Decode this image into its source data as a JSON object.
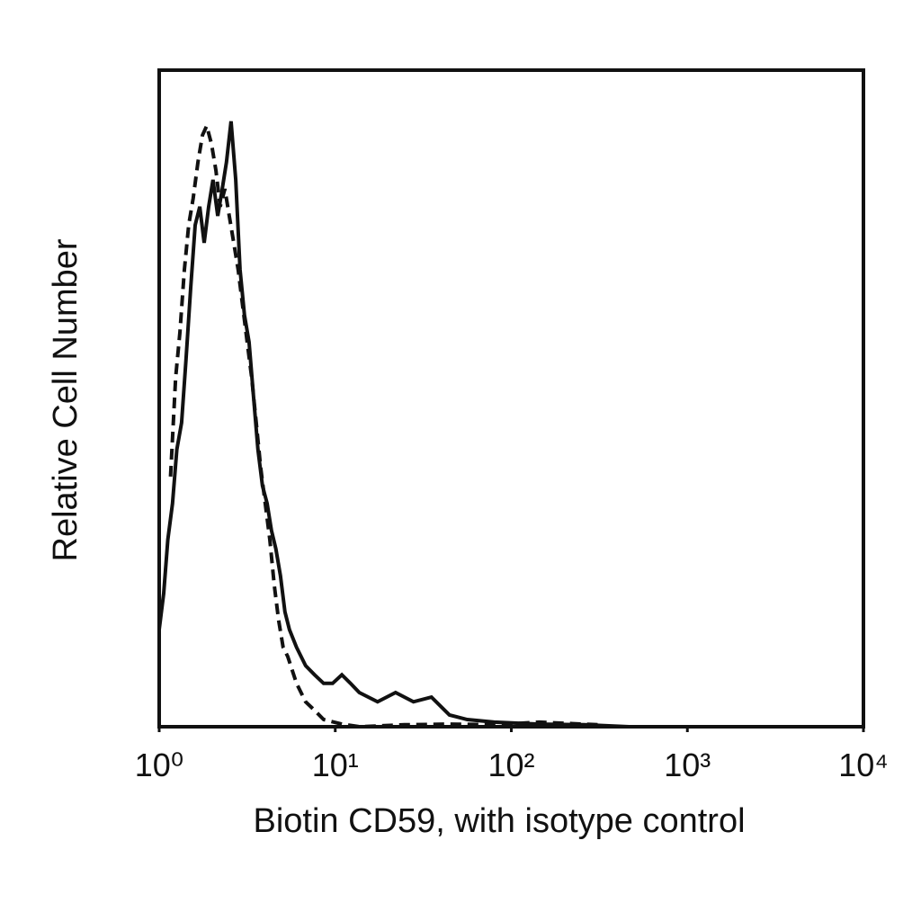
{
  "chart_data": {
    "type": "line",
    "x_label": "Biotin CD59, with isotype control",
    "y_label": "Relative Cell Number",
    "log_x": true,
    "xlim": [
      1,
      10000
    ],
    "xticks": [
      {
        "value": 1,
        "label": "10⁰"
      },
      {
        "value": 10,
        "label": "10¹"
      },
      {
        "value": 100,
        "label": "10²"
      },
      {
        "value": 1000,
        "label": "10³"
      },
      {
        "value": 10000,
        "label": "10⁴"
      }
    ],
    "ylim": [
      0,
      100
    ],
    "series": [
      {
        "color": "#111111",
        "dashed": false,
        "x": [
          1,
          1.06,
          1.12,
          1.19,
          1.26,
          1.34,
          1.42,
          1.51,
          1.6,
          1.7,
          1.8,
          1.91,
          2.02,
          2.15,
          2.28,
          2.41,
          2.56,
          2.72,
          2.88,
          3.05,
          3.24,
          3.43,
          3.64,
          3.86,
          4.1,
          4.34,
          4.6,
          4.88,
          5.18,
          5.49,
          6.03,
          6.79,
          7.63,
          8.59,
          9.66,
          10.9,
          12.2,
          13.7,
          17.4,
          22,
          27.8,
          35.2,
          44.5,
          56.2,
          80,
          144,
          259,
          466
        ],
        "values": [
          14.8,
          20.3,
          28.5,
          34,
          42.2,
          46.3,
          55.9,
          66.8,
          76.4,
          79.2,
          73.7,
          79.2,
          83.3,
          77.8,
          81.9,
          86,
          92.2,
          83.3,
          69.6,
          62.7,
          58.6,
          50.4,
          42.2,
          36.7,
          34,
          29.9,
          27.1,
          23,
          17.5,
          14.8,
          12.1,
          9.3,
          7.9,
          6.6,
          6.6,
          7.9,
          6.6,
          5.2,
          3.8,
          5.2,
          3.8,
          4.5,
          1.8,
          1.1,
          0.7,
          0.4,
          0.3,
          0
        ]
      },
      {
        "color": "#111111",
        "dashed": true,
        "x": [
          1.16,
          1.24,
          1.31,
          1.39,
          1.47,
          1.56,
          1.66,
          1.76,
          1.86,
          1.98,
          2.1,
          2.22,
          2.36,
          2.5,
          2.65,
          2.81,
          2.98,
          3.16,
          3.35,
          3.56,
          3.77,
          4,
          4.25,
          4.5,
          4.77,
          5.06,
          5.37,
          6.03,
          6.79,
          7.63,
          8.59,
          10.9,
          13.7,
          24.7,
          44.5,
          80,
          144,
          259,
          309
        ],
        "values": [
          38.1,
          53.2,
          60,
          69.6,
          76.4,
          80.5,
          86,
          90.1,
          91.5,
          88.8,
          84.7,
          79.2,
          81.9,
          77.8,
          73.7,
          69.6,
          64.1,
          58.6,
          53.2,
          46.3,
          39.5,
          34,
          28.5,
          21.6,
          16.2,
          12.1,
          10.7,
          6.6,
          3.8,
          2.5,
          1.1,
          0.4,
          0,
          0.3,
          0.4,
          0.3,
          0.7,
          0.4,
          0.3
        ]
      }
    ]
  }
}
